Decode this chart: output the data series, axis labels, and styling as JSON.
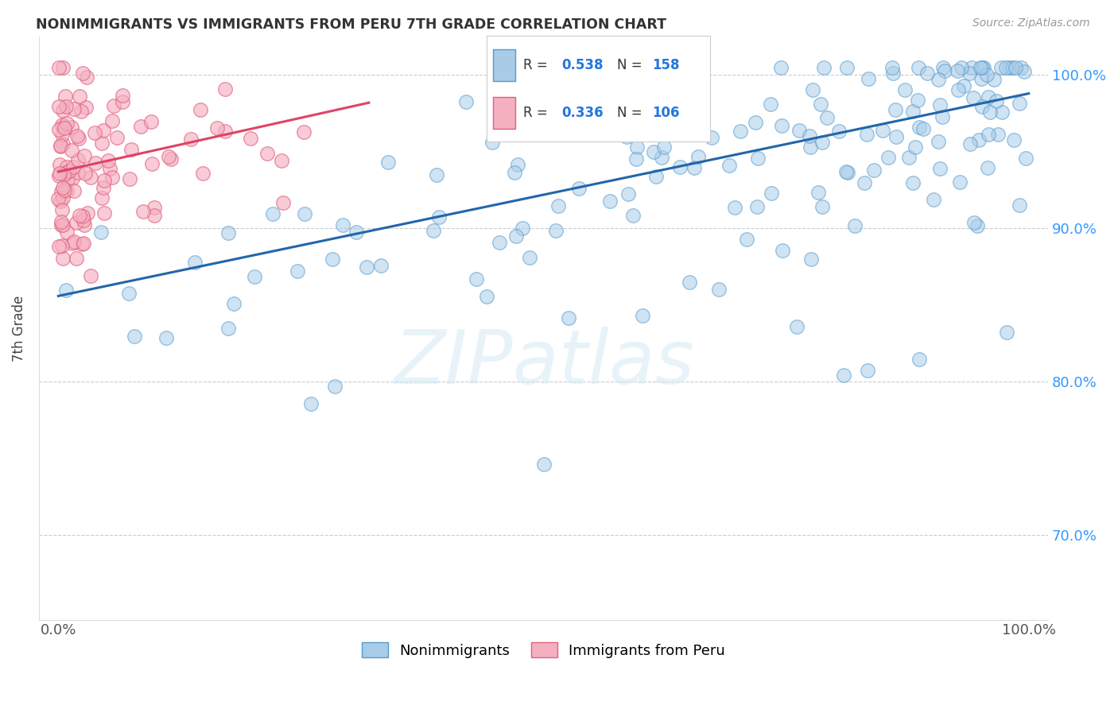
{
  "title": "NONIMMIGRANTS VS IMMIGRANTS FROM PERU 7TH GRADE CORRELATION CHART",
  "source": "Source: ZipAtlas.com",
  "ylabel": "7th Grade",
  "legend_blue_r": "0.538",
  "legend_blue_n": "158",
  "legend_pink_r": "0.336",
  "legend_pink_n": "106",
  "legend_nonimm": "Nonimmigrants",
  "legend_imm": "Immigrants from Peru",
  "blue_fill": "#a8cce8",
  "blue_edge": "#5599cc",
  "pink_fill": "#f5b0c0",
  "pink_edge": "#e06080",
  "blue_line_color": "#2266aa",
  "pink_line_color": "#dd4466",
  "right_tick_color": "#3399ff",
  "xlim": [
    -0.02,
    1.02
  ],
  "ylim": [
    0.645,
    1.025
  ],
  "yticks": [
    0.7,
    0.8,
    0.9,
    1.0
  ],
  "ytick_labels": [
    "70.0%",
    "80.0%",
    "90.0%",
    "100.0%"
  ],
  "xtick_pos": [
    0.0,
    0.25,
    0.5,
    0.75,
    1.0
  ],
  "xtick_labels": [
    "0.0%",
    "",
    "",
    "",
    "100.0%"
  ],
  "blue_line_x": [
    0.0,
    1.0
  ],
  "blue_line_y": [
    0.856,
    0.988
  ],
  "pink_line_x": [
    0.0,
    0.32
  ],
  "pink_line_y": [
    0.937,
    0.982
  ],
  "watermark": "ZIPatlas",
  "blue_seed": 7,
  "pink_seed": 13
}
